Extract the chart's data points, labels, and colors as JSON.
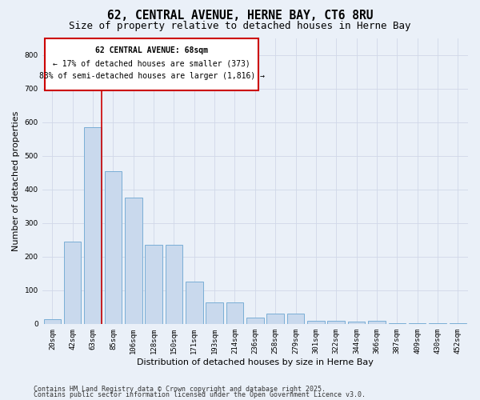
{
  "title1": "62, CENTRAL AVENUE, HERNE BAY, CT6 8RU",
  "title2": "Size of property relative to detached houses in Herne Bay",
  "xlabel": "Distribution of detached houses by size in Herne Bay",
  "ylabel": "Number of detached properties",
  "categories": [
    "20sqm",
    "42sqm",
    "63sqm",
    "85sqm",
    "106sqm",
    "128sqm",
    "150sqm",
    "171sqm",
    "193sqm",
    "214sqm",
    "236sqm",
    "258sqm",
    "279sqm",
    "301sqm",
    "322sqm",
    "344sqm",
    "366sqm",
    "387sqm",
    "409sqm",
    "430sqm",
    "452sqm"
  ],
  "values": [
    15,
    245,
    585,
    455,
    375,
    235,
    235,
    125,
    65,
    65,
    18,
    30,
    30,
    10,
    10,
    7,
    10,
    2,
    2,
    2,
    2
  ],
  "bar_color": "#c9d9ed",
  "bar_edge_color": "#7aaed6",
  "bar_width": 0.85,
  "red_line_color": "#cc0000",
  "annotation_line1": "62 CENTRAL AVENUE: 68sqm",
  "annotation_line2": "← 17% of detached houses are smaller (373)",
  "annotation_line3": "83% of semi-detached houses are larger (1,816) →",
  "annotation_box_color": "#ffffff",
  "annotation_box_edge": "#cc0000",
  "grid_color": "#d0d8e8",
  "background_color": "#eaf0f8",
  "ylim": [
    0,
    850
  ],
  "yticks": [
    0,
    100,
    200,
    300,
    400,
    500,
    600,
    700,
    800
  ],
  "footer1": "Contains HM Land Registry data © Crown copyright and database right 2025.",
  "footer2": "Contains public sector information licensed under the Open Government Licence v3.0.",
  "title_fontsize": 10.5,
  "subtitle_fontsize": 9,
  "axis_label_fontsize": 8,
  "tick_fontsize": 6.5,
  "annotation_fontsize": 7,
  "footer_fontsize": 6
}
